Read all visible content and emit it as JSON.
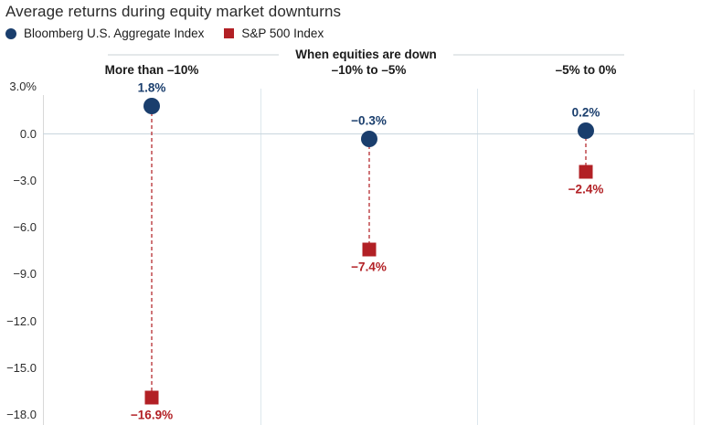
{
  "chart_data": {
    "type": "scatter",
    "title": "Average returns during equity market downturns",
    "group_header": "When equities are down",
    "categories": [
      "More than –10%",
      "–10% to –5%",
      "–5% to 0%"
    ],
    "series": [
      {
        "name": "Bloomberg U.S. Aggregate Index",
        "marker": "circle",
        "color": "#1a3e6d",
        "values": [
          1.8,
          -0.3,
          0.2
        ],
        "value_labels": [
          "1.8%",
          "−0.3%",
          "0.2%"
        ]
      },
      {
        "name": "S&P 500 Index",
        "marker": "square",
        "color": "#b22025",
        "values": [
          -16.9,
          -7.4,
          -2.4
        ],
        "value_labels": [
          "−16.9%",
          "−7.4%",
          "−2.4%"
        ]
      }
    ],
    "y_axis": {
      "ticks": [
        3,
        0,
        -3,
        -6,
        -9,
        -12,
        -15,
        -18
      ],
      "tick_labels": [
        "3.0%",
        "0.0",
        "−3.0",
        "−6.0",
        "−9.0",
        "−12.0",
        "−15.0",
        "−18.0"
      ],
      "ylim": [
        -18,
        3
      ]
    },
    "connector_style": "dashed",
    "grid": {
      "zero_line": true,
      "column_separators": true,
      "other_gridlines": false
    },
    "legend_position": "top-left"
  },
  "colors": {
    "zero_line": "#c9d6de",
    "separator": "#dde7ed",
    "axis_line": "#d8d8d8",
    "right_border": "#ececec",
    "connector": "rgba(178,32,37,0.62)"
  }
}
